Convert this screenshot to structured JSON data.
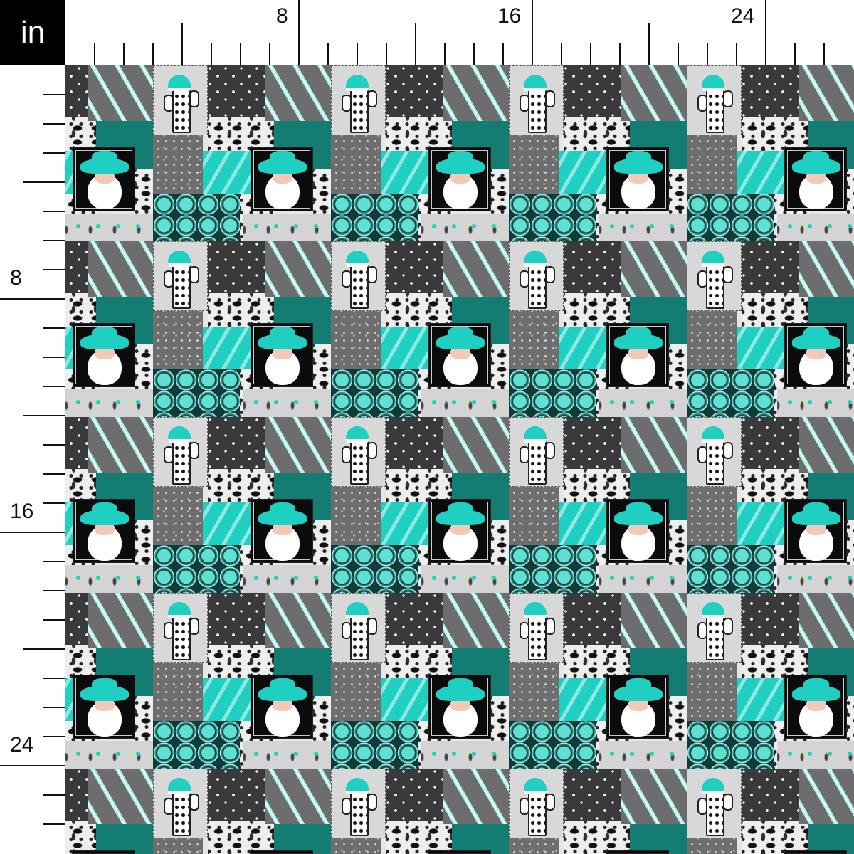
{
  "ruler": {
    "unit": "in",
    "top_labels": [
      "8",
      "16",
      "24"
    ],
    "left_labels": [
      "8",
      "16",
      "24"
    ]
  },
  "colors": {
    "teal": "#1fcfc1",
    "dark_gray": "#3a3a3a",
    "mid_gray": "#6d6d6d",
    "light_gray": "#d8d8d8",
    "black": "#0b0b0b"
  }
}
